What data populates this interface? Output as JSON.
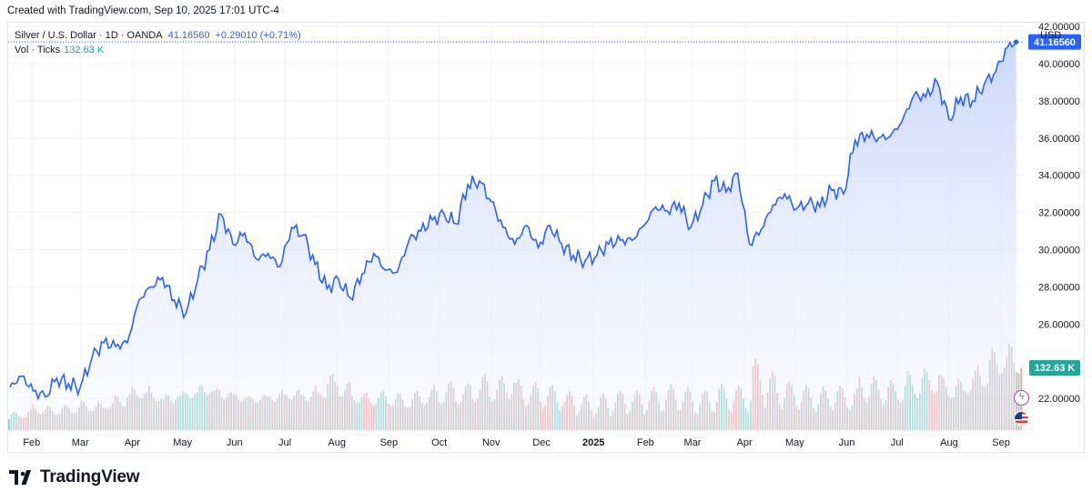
{
  "header": {
    "created_text": "Created with TradingView.com, Sep 10, 2025 17:01 UTC-4"
  },
  "legend": {
    "symbol": "Silver / U.S. Dollar · 1D · OANDA",
    "last": "41.16560",
    "change": "+0.29010 (+0.71%)",
    "volume_label": "Vol · Ticks",
    "volume_value": "132.63 K"
  },
  "currency": "USD",
  "brand": {
    "name": "TradingView"
  },
  "colors": {
    "line": "#2962ff",
    "area_top": "#c9d6fb",
    "area_bottom": "#f4f6fe",
    "vol_up": "#26a69a",
    "vol_down": "#ef5350",
    "price_tag": "#2962ff",
    "vol_tag": "#26a69a"
  },
  "icons": [
    "lightning-icon",
    "us-flag-icon",
    "tradingview-logo-icon"
  ],
  "chart_data": {
    "type": "area",
    "title": "Silver / U.S. Dollar · 1D · OANDA",
    "y_axis": {
      "label": "USD",
      "ticks": [
        "22.00000",
        "26.00000",
        "28.00000",
        "30.00000",
        "32.00000",
        "34.00000",
        "36.00000",
        "38.00000",
        "40.00000",
        "42.00000"
      ],
      "range": [
        20.3,
        42.2
      ]
    },
    "x_axis": {
      "ticks": [
        "Feb",
        "Mar",
        "Apr",
        "May",
        "Jun",
        "Jul",
        "Aug",
        "Sep",
        "Oct",
        "Nov",
        "Dec",
        "2025",
        "Feb",
        "Mar",
        "Apr",
        "May",
        "Jun",
        "Jul",
        "Aug",
        "Sep"
      ]
    },
    "last_price_label": "41.16560",
    "last_volume_label": "132.63 K",
    "grid": true,
    "legend": "top-left",
    "series": [
      {
        "name": "Silver / U.S. Dollar",
        "points": [
          [
            "2024-01-19",
            22.6
          ],
          [
            "2024-01-26",
            23.2
          ],
          [
            "2024-02-02",
            22.4
          ],
          [
            "2024-02-09",
            22.1
          ],
          [
            "2024-02-16",
            23.1
          ],
          [
            "2024-02-23",
            22.8
          ],
          [
            "2024-03-01",
            22.6
          ],
          [
            "2024-03-08",
            24.2
          ],
          [
            "2024-03-15",
            25.0
          ],
          [
            "2024-03-22",
            24.8
          ],
          [
            "2024-03-29",
            25.0
          ],
          [
            "2024-04-05",
            27.3
          ],
          [
            "2024-04-12",
            28.0
          ],
          [
            "2024-04-19",
            28.5
          ],
          [
            "2024-04-26",
            27.3
          ],
          [
            "2024-05-03",
            26.6
          ],
          [
            "2024-05-10",
            28.4
          ],
          [
            "2024-05-17",
            30.0
          ],
          [
            "2024-05-24",
            31.9
          ],
          [
            "2024-05-31",
            30.3
          ],
          [
            "2024-06-07",
            30.9
          ],
          [
            "2024-06-14",
            29.5
          ],
          [
            "2024-06-21",
            29.8
          ],
          [
            "2024-06-28",
            29.1
          ],
          [
            "2024-07-05",
            31.2
          ],
          [
            "2024-07-12",
            30.8
          ],
          [
            "2024-07-19",
            29.2
          ],
          [
            "2024-07-26",
            27.9
          ],
          [
            "2024-08-02",
            28.4
          ],
          [
            "2024-08-09",
            27.4
          ],
          [
            "2024-08-16",
            28.7
          ],
          [
            "2024-08-23",
            29.8
          ],
          [
            "2024-08-30",
            28.9
          ],
          [
            "2024-09-06",
            28.8
          ],
          [
            "2024-09-13",
            30.5
          ],
          [
            "2024-09-20",
            31.0
          ],
          [
            "2024-09-27",
            31.6
          ],
          [
            "2024-10-04",
            31.9
          ],
          [
            "2024-10-11",
            31.4
          ],
          [
            "2024-10-18",
            33.5
          ],
          [
            "2024-10-25",
            33.7
          ],
          [
            "2024-11-01",
            32.6
          ],
          [
            "2024-11-08",
            31.2
          ],
          [
            "2024-11-15",
            30.3
          ],
          [
            "2024-11-22",
            31.3
          ],
          [
            "2024-11-29",
            30.1
          ],
          [
            "2024-12-06",
            31.3
          ],
          [
            "2024-12-13",
            30.3
          ],
          [
            "2024-12-20",
            29.7
          ],
          [
            "2024-12-27",
            29.4
          ],
          [
            "2025-01-03",
            29.7
          ],
          [
            "2025-01-10",
            30.3
          ],
          [
            "2025-01-17",
            30.5
          ],
          [
            "2025-01-24",
            30.5
          ],
          [
            "2025-01-31",
            31.3
          ],
          [
            "2025-02-07",
            32.3
          ],
          [
            "2025-02-14",
            32.1
          ],
          [
            "2025-02-21",
            32.5
          ],
          [
            "2025-02-28",
            31.2
          ],
          [
            "2025-03-07",
            32.4
          ],
          [
            "2025-03-14",
            33.7
          ],
          [
            "2025-03-21",
            33.1
          ],
          [
            "2025-03-28",
            34.1
          ],
          [
            "2025-04-04",
            30.3
          ],
          [
            "2025-04-11",
            31.1
          ],
          [
            "2025-04-18",
            32.4
          ],
          [
            "2025-04-25",
            33.0
          ],
          [
            "2025-05-02",
            32.2
          ],
          [
            "2025-05-09",
            32.5
          ],
          [
            "2025-05-16",
            32.3
          ],
          [
            "2025-05-23",
            33.2
          ],
          [
            "2025-05-30",
            33.0
          ],
          [
            "2025-06-06",
            35.9
          ],
          [
            "2025-06-13",
            36.2
          ],
          [
            "2025-06-20",
            36.0
          ],
          [
            "2025-06-27",
            36.1
          ],
          [
            "2025-07-04",
            36.9
          ],
          [
            "2025-07-11",
            38.3
          ],
          [
            "2025-07-18",
            38.2
          ],
          [
            "2025-07-25",
            39.0
          ],
          [
            "2025-08-01",
            37.0
          ],
          [
            "2025-08-08",
            38.2
          ],
          [
            "2025-08-15",
            38.0
          ],
          [
            "2025-08-22",
            38.9
          ],
          [
            "2025-08-29",
            39.6
          ],
          [
            "2025-09-05",
            40.9
          ],
          [
            "2025-09-10",
            41.1656
          ]
        ]
      }
    ],
    "volume": {
      "name": "Vol · Ticks",
      "range": [
        0,
        400
      ],
      "weekly_average": [
        [
          60,
          1
        ],
        [
          70,
          0
        ],
        [
          90,
          1
        ],
        [
          80,
          1
        ],
        [
          85,
          0
        ],
        [
          90,
          1
        ],
        [
          100,
          1
        ],
        [
          95,
          0
        ],
        [
          110,
          1
        ],
        [
          120,
          1
        ],
        [
          150,
          1
        ],
        [
          160,
          0
        ],
        [
          140,
          1
        ],
        [
          130,
          0
        ],
        [
          145,
          1
        ],
        [
          155,
          1
        ],
        [
          170,
          1
        ],
        [
          160,
          0
        ],
        [
          150,
          0
        ],
        [
          140,
          1
        ],
        [
          130,
          0
        ],
        [
          135,
          1
        ],
        [
          140,
          1
        ],
        [
          150,
          0
        ],
        [
          150,
          1
        ],
        [
          145,
          0
        ],
        [
          160,
          0
        ],
        [
          200,
          0
        ],
        [
          170,
          1
        ],
        [
          140,
          1
        ],
        [
          130,
          0
        ],
        [
          135,
          1
        ],
        [
          130,
          0
        ],
        [
          120,
          1
        ],
        [
          130,
          1
        ],
        [
          140,
          1
        ],
        [
          150,
          0
        ],
        [
          160,
          1
        ],
        [
          150,
          0
        ],
        [
          170,
          1
        ],
        [
          180,
          1
        ],
        [
          170,
          0
        ],
        [
          200,
          0
        ],
        [
          160,
          0
        ],
        [
          150,
          1
        ],
        [
          145,
          0
        ],
        [
          140,
          1
        ],
        [
          120,
          0
        ],
        [
          110,
          1
        ],
        [
          100,
          0
        ],
        [
          110,
          1
        ],
        [
          120,
          1
        ],
        [
          125,
          1
        ],
        [
          120,
          0
        ],
        [
          130,
          1
        ],
        [
          135,
          1
        ],
        [
          140,
          1
        ],
        [
          130,
          0
        ],
        [
          120,
          0
        ],
        [
          130,
          1
        ],
        [
          140,
          1
        ],
        [
          135,
          0
        ],
        [
          140,
          1
        ],
        [
          220,
          0
        ],
        [
          180,
          1
        ],
        [
          160,
          1
        ],
        [
          150,
          0
        ],
        [
          140,
          1
        ],
        [
          130,
          0
        ],
        [
          135,
          1
        ],
        [
          140,
          1
        ],
        [
          130,
          0
        ],
        [
          180,
          1
        ],
        [
          170,
          1
        ],
        [
          160,
          0
        ],
        [
          165,
          1
        ],
        [
          190,
          1
        ],
        [
          200,
          1
        ],
        [
          210,
          0
        ],
        [
          180,
          1
        ],
        [
          170,
          0
        ],
        [
          200,
          1
        ],
        [
          230,
          1
        ],
        [
          280,
          1
        ],
        [
          300,
          0
        ],
        [
          290,
          1
        ]
      ]
    }
  }
}
